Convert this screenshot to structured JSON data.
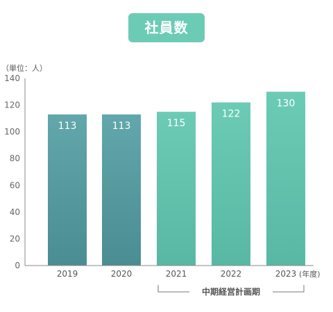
{
  "chart_data": {
    "type": "bar",
    "title": "社員数",
    "unit_label": "（単位：人）",
    "x_unit_label": "(年度)",
    "categories": [
      "2019",
      "2020",
      "2021",
      "2022",
      "2023"
    ],
    "values": [
      113,
      113,
      115,
      122,
      130
    ],
    "ylim": [
      0,
      140
    ],
    "yticks": [
      0,
      20,
      40,
      60,
      80,
      100,
      120,
      140
    ],
    "bar_styles": [
      "actual",
      "actual",
      "plan",
      "plan",
      "plan"
    ],
    "colors": {
      "actual_top": "#62a7ab",
      "actual_bottom": "#4a8d92",
      "plan_top": "#6ccbb5",
      "plan_bottom": "#58b8a3",
      "title_bg": "#6ccbb5"
    },
    "bracket": {
      "label": "中期経営計画期",
      "from_category": "2021",
      "to_category": "2023"
    }
  }
}
